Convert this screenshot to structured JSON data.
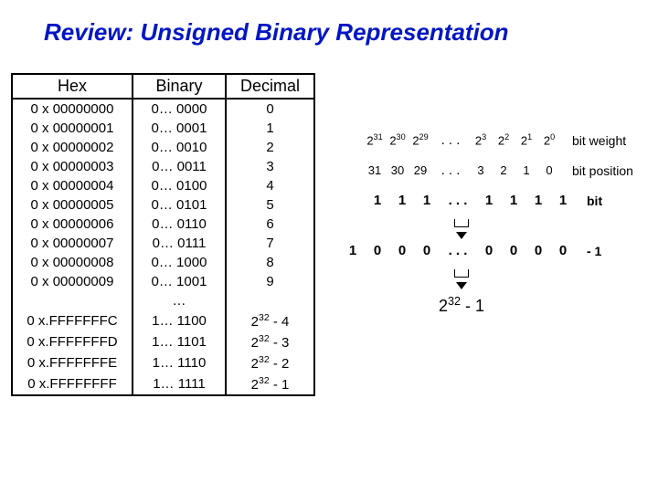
{
  "title": "Review:  Unsigned Binary Representation",
  "table": {
    "headers": {
      "hex": "Hex",
      "binary": "Binary",
      "decimal": "Decimal"
    },
    "rows": [
      {
        "hex": "0 x 00000000",
        "bin": "0… 0000",
        "dec": "0"
      },
      {
        "hex": "0 x 00000001",
        "bin": "0… 0001",
        "dec": "1"
      },
      {
        "hex": "0 x 00000002",
        "bin": "0… 0010",
        "dec": "2"
      },
      {
        "hex": "0 x 00000003",
        "bin": "0… 0011",
        "dec": "3"
      },
      {
        "hex": "0 x 00000004",
        "bin": "0… 0100",
        "dec": "4"
      },
      {
        "hex": "0 x 00000005",
        "bin": "0… 0101",
        "dec": "5"
      },
      {
        "hex": "0 x 00000006",
        "bin": "0… 0110",
        "dec": "6"
      },
      {
        "hex": "0 x 00000007",
        "bin": "0… 0111",
        "dec": "7"
      },
      {
        "hex": "0 x 00000008",
        "bin": "0… 1000",
        "dec": "8"
      },
      {
        "hex": "0 x 00000009",
        "bin": "0… 1001",
        "dec": "9"
      },
      {
        "hex": "",
        "bin": "…",
        "dec": ""
      },
      {
        "hex": "0 x.FFFFFFFC",
        "bin": "1… 1100",
        "dec_html": "2<sup>32</sup> - 4"
      },
      {
        "hex": "0 x.FFFFFFFD",
        "bin": "1… 1101",
        "dec_html": "2<sup>32</sup> - 3"
      },
      {
        "hex": "0 x.FFFFFFFE",
        "bin": "1… 1110",
        "dec_html": "2<sup>32</sup> - 2"
      },
      {
        "hex": "0 x.FFFFFFFF",
        "bin": "1… 1111",
        "dec_html": "2<sup>32</sup> - 1"
      }
    ]
  },
  "weights": {
    "hi": [
      "31",
      "30",
      "29"
    ],
    "lo": [
      "3",
      "2",
      "1",
      "0"
    ],
    "label": "bit weight"
  },
  "positions": {
    "hi": [
      "31",
      "30",
      "29"
    ],
    "lo": [
      "3",
      "2",
      "1",
      "0"
    ],
    "label": "bit position"
  },
  "bits": {
    "hi": [
      "1",
      "1",
      "1"
    ],
    "lo": [
      "1",
      "1",
      "1",
      "1"
    ],
    "label": "bit"
  },
  "sub": {
    "lead": "1",
    "hi": [
      "0",
      "0",
      "0"
    ],
    "lo": [
      "0",
      "0",
      "0",
      "0"
    ],
    "label": "-  1"
  },
  "dots": ". . .",
  "result_html": "2<sup>32</sup>  -  1"
}
